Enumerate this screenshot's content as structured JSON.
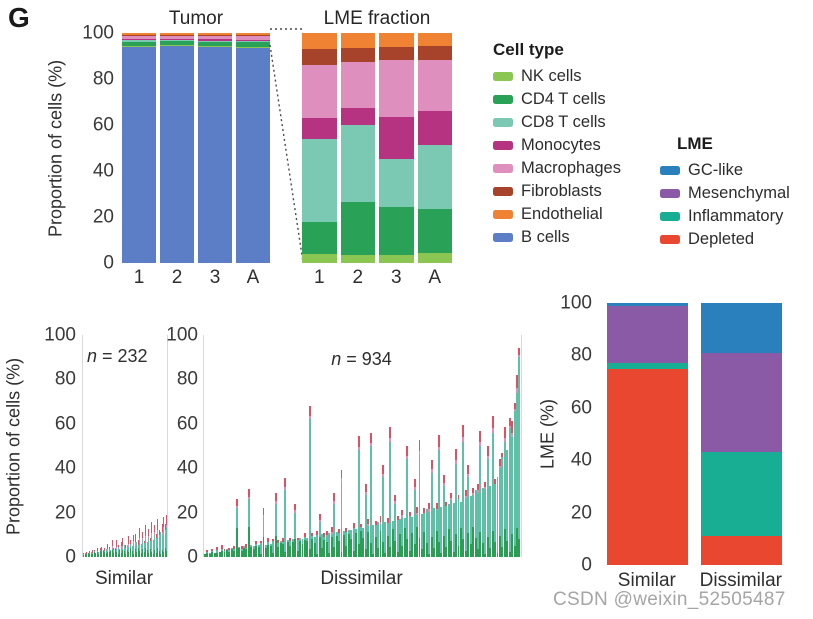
{
  "figure_label": "G",
  "watermark": "CSDN @weixin_52505487",
  "palette": {
    "NK cells": "#8BC653",
    "CD4 T cells": "#29A257",
    "CD8 T cells": "#7BC8B3",
    "Monocytes": "#B53380",
    "Macrophages": "#DE8FBE",
    "Fibroblasts": "#A7432A",
    "Endothelial": "#F08233",
    "B cells": "#5C7EC6",
    "GC-like": "#2980BC",
    "Mesenchymal": "#8B5AA6",
    "Inflammatory": "#17AE93",
    "Depleted": "#E9472F",
    "dense_green": "#2B9E53",
    "dense_teal": "#5EC1A6",
    "dense_pink": "#DE8FBE",
    "dense_red": "#DE5064"
  },
  "legends": {
    "cell_type": {
      "title": "Cell type",
      "items": [
        "NK cells",
        "CD4 T cells",
        "CD8 T cells",
        "Monocytes",
        "Macrophages",
        "Fibroblasts",
        "Endothelial",
        "B cells"
      ]
    },
    "lme": {
      "title": "LME",
      "items": [
        "GC-like",
        "Mesenchymal",
        "Inflammatory",
        "Depleted"
      ]
    }
  },
  "chart_data": [
    {
      "id": "tumor",
      "type": "bar",
      "stacked": true,
      "title": "Tumor",
      "ylabel": "Proportion of cells (%)",
      "ylim": [
        0,
        100
      ],
      "yticks": [
        0,
        20,
        40,
        60,
        80,
        100
      ],
      "grid": false,
      "categories": [
        "1",
        "2",
        "3",
        "A"
      ],
      "stack_order": [
        "B cells",
        "NK cells",
        "CD4 T cells",
        "CD8 T cells",
        "Monocytes",
        "Macrophages",
        "Fibroblasts",
        "Endothelial"
      ],
      "bars": [
        {
          "label": "1",
          "values": [
            94.0,
            0.3,
            2.0,
            0.5,
            0.4,
            1.4,
            0.6,
            0.8
          ]
        },
        {
          "label": "2",
          "values": [
            94.5,
            0.3,
            1.8,
            0.4,
            0.4,
            1.3,
            0.5,
            0.8
          ]
        },
        {
          "label": "3",
          "values": [
            94.0,
            0.3,
            1.7,
            0.5,
            0.7,
            1.5,
            0.5,
            0.8
          ]
        },
        {
          "label": "A",
          "values": [
            93.5,
            0.4,
            2.0,
            0.6,
            0.6,
            1.5,
            0.6,
            0.8
          ]
        }
      ]
    },
    {
      "id": "lme_fraction",
      "type": "bar",
      "stacked": true,
      "title": "LME fraction",
      "ylim": [
        0,
        100
      ],
      "grid": false,
      "categories": [
        "1",
        "2",
        "3",
        "A"
      ],
      "stack_order": [
        "NK cells",
        "CD4 T cells",
        "CD8 T cells",
        "Monocytes",
        "Macrophages",
        "Fibroblasts",
        "Endothelial"
      ],
      "bars": [
        {
          "label": "1",
          "values": [
            4.0,
            14.0,
            36.0,
            9.0,
            23.0,
            7.0,
            7.0
          ]
        },
        {
          "label": "2",
          "values": [
            3.5,
            23.0,
            33.5,
            7.5,
            20.0,
            6.0,
            6.5
          ]
        },
        {
          "label": "3",
          "values": [
            3.3,
            21.0,
            21.0,
            18.0,
            25.0,
            5.7,
            6.0
          ]
        },
        {
          "label": "A",
          "values": [
            4.3,
            19.0,
            28.0,
            15.0,
            22.0,
            6.0,
            5.7
          ]
        }
      ]
    },
    {
      "id": "similar_dense",
      "type": "bar",
      "n": 232,
      "annotation_italic": "n",
      "annotation_rest": " = 232",
      "xlabel": "Similar",
      "ylabel": "Proportion of cells (%)",
      "ylim": [
        0,
        100
      ],
      "yticks": [
        0,
        20,
        40,
        60,
        80,
        100
      ],
      "grid": false,
      "green_max": 3.2,
      "totals": [
        1.2,
        1.8,
        1.5,
        2.0,
        1.6,
        2.2,
        1.8,
        2.5,
        2.0,
        2.6,
        2.2,
        3.0,
        2.4,
        3.2,
        2.6,
        3.4,
        2.8,
        3.6,
        3.0,
        3.8,
        3.2,
        4.0,
        3.4,
        4.4,
        3.6,
        4.8,
        3.8,
        5.2,
        4.0,
        5.6,
        4.4,
        6.0,
        4.8,
        6.4,
        5.2,
        6.8,
        5.6,
        7.2,
        6.0,
        7.6,
        6.4,
        8.0,
        6.8,
        8.6,
        7.2,
        9.2,
        7.8,
        10.0,
        8.4,
        10.6,
        9.0,
        11.4,
        10.0,
        12.2,
        11.0,
        13.0
      ],
      "red_tips": [
        0.4,
        0,
        0.8,
        0,
        1.0,
        0,
        1.4,
        0.5,
        0,
        1.6,
        0,
        1.2,
        2.0,
        0,
        1.5,
        0,
        2.4,
        0.8,
        0,
        2.8,
        1.0,
        0,
        3.0,
        1.2,
        0,
        2.0,
        3.4,
        0,
        1.5,
        0,
        3.8,
        1.6,
        0,
        2.5,
        4.0,
        0,
        2.0,
        4.4,
        0,
        2.8,
        1.0,
        4.6,
        0,
        3.0,
        1.5,
        4.8,
        0,
        3.2,
        2.0,
        5.0,
        2.5,
        0,
        3.5,
        4.2,
        2.8,
        4.5
      ]
    },
    {
      "id": "dissimilar_dense",
      "type": "bar",
      "n": 934,
      "annotation_italic": "n",
      "annotation_rest": " = 934",
      "xlabel": "Dissimilar",
      "ylim": [
        0,
        100
      ],
      "yticks": [
        0,
        20,
        40,
        60,
        80,
        100
      ],
      "grid": false,
      "green_max": 13,
      "totals": [
        1.5,
        2.2,
        1.8,
        2.6,
        2.0,
        3.0,
        2.4,
        3.4,
        2.8,
        3.8,
        3.0,
        4.2,
        3.4,
        22,
        4.6,
        3.8,
        5.0,
        4.2,
        26,
        5.4,
        5.0,
        5.8,
        5.2,
        6.2,
        18,
        5.6,
        6.6,
        6.0,
        7.0,
        24,
        6.5,
        7.4,
        6.8,
        30,
        7.8,
        7.2,
        8.2,
        20,
        7.6,
        8.6,
        8.0,
        9.0,
        8.4,
        62,
        9.4,
        8.8,
        9.8,
        16,
        10.2,
        9.2,
        10.0,
        11.0,
        10.4,
        24,
        11.4,
        10.8,
        34,
        11.8,
        11.2,
        12.2,
        12.0,
        13.2,
        12.6,
        48,
        13.6,
        13.0,
        28,
        14.0,
        50,
        14.4,
        14.5,
        15.6,
        15.0,
        36,
        16.0,
        15.4,
        52,
        16.4,
        24,
        16.8,
        17.0,
        18.2,
        17.6,
        44,
        18.6,
        18.0,
        30,
        19.0,
        46,
        19.4,
        20.0,
        21.5,
        20.5,
        38,
        22.0,
        21.0,
        48,
        22.5,
        32,
        23.0,
        24.0,
        25.5,
        24.5,
        42,
        26.0,
        25.0,
        52,
        26.5,
        36,
        27.5,
        28.0,
        30.0,
        29.0,
        50,
        31.0,
        30.5,
        44,
        32.0,
        56,
        33.0,
        36,
        40,
        45,
        52,
        48,
        58,
        54,
        66,
        74,
        90
      ],
      "red_tips": [
        0,
        0.8,
        0,
        1.2,
        0,
        1.5,
        0,
        1.8,
        0.6,
        0,
        1.0,
        0,
        1.5,
        3.0,
        0,
        1.2,
        0,
        1.8,
        3.5,
        0,
        0,
        1.5,
        0,
        1.0,
        3.0,
        0,
        1.8,
        0,
        1.2,
        3.5,
        1.2,
        0,
        1.6,
        4.0,
        0,
        1.4,
        0,
        3.0,
        1.0,
        0,
        0,
        1.8,
        0,
        4.5,
        1.2,
        0,
        2.0,
        2.5,
        0,
        1.5,
        1.5,
        0,
        2.2,
        3.5,
        0,
        1.8,
        4.0,
        0,
        2.0,
        0,
        0,
        2.0,
        0,
        5.0,
        1.5,
        0,
        3.5,
        2.2,
        4.5,
        0,
        1.8,
        0,
        2.5,
        4.0,
        0,
        2.0,
        5.0,
        0,
        3.0,
        1.5,
        0,
        2.2,
        0,
        4.5,
        1.8,
        0,
        3.8,
        2.5,
        5.0,
        0,
        2.0,
        0,
        2.8,
        4.2,
        0,
        2.4,
        5.0,
        0,
        3.5,
        1.8,
        0,
        2.5,
        0,
        4.8,
        2.0,
        0,
        5.5,
        2.8,
        4.0,
        0,
        2.2,
        0,
        3.0,
        5.0,
        0,
        2.6,
        4.5,
        0,
        5.5,
        2.0,
        0,
        3.0,
        2.0,
        5.0,
        0,
        3.5,
        5.5,
        2.5,
        6.0,
        3.0
      ]
    },
    {
      "id": "lme_pct",
      "type": "bar",
      "stacked": true,
      "ylabel": "LME (%)",
      "ylim": [
        0,
        100
      ],
      "yticks": [
        0,
        20,
        40,
        60,
        80,
        100
      ],
      "grid": false,
      "categories": [
        "Similar",
        "Dissimilar"
      ],
      "stack_order": [
        "Depleted",
        "Inflammatory",
        "Mesenchymal",
        "GC-like"
      ],
      "bars": [
        {
          "label": "Similar",
          "values": [
            75,
            2,
            22,
            1
          ]
        },
        {
          "label": "Dissimilar",
          "values": [
            11,
            32,
            38,
            19
          ]
        }
      ]
    }
  ]
}
